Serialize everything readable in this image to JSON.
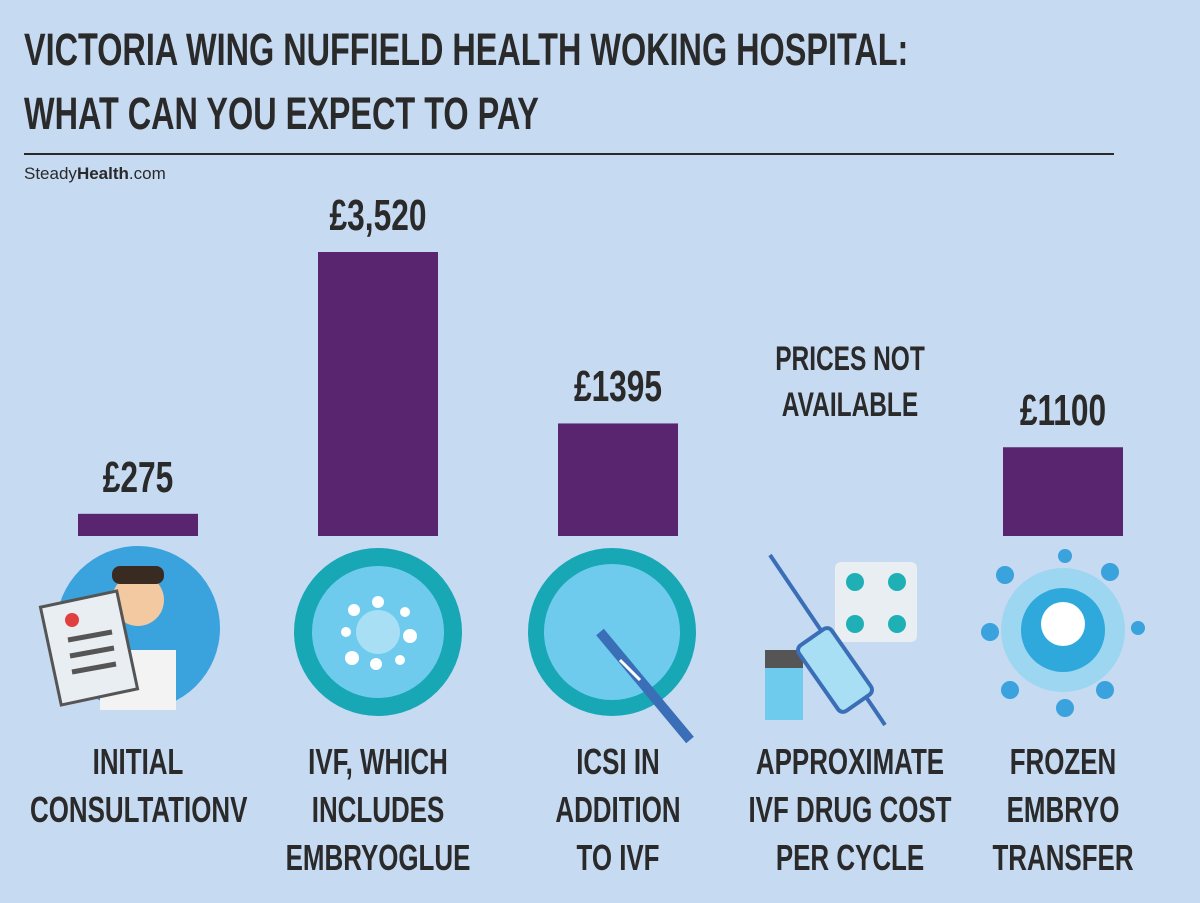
{
  "chart_data": {
    "type": "bar",
    "title": "VICTORIA WING NUFFIELD HEALTH WOKING HOSPITAL:\nWHAT CAN YOU EXPECT TO PAY",
    "source": [
      "Steady",
      "Health",
      ".com"
    ],
    "categories": [
      "INITIAL\nCONSULTATIONV",
      "IVF, WHICH\nINCLUDES\nEMBRYOGLUE",
      "ICSI IN\nADDITION\nTO IVF",
      "APPROXIMATE\nIVF DRUG COST\nPER CYCLE",
      "FROZEN\nEMBRYO\nTRANSFER"
    ],
    "values": [
      275,
      3520,
      1395,
      null,
      1100
    ],
    "value_labels": [
      "£275",
      "£3,520",
      "£1395",
      null,
      "£1100"
    ],
    "annotation": "PRICES NOT\nAVAILABLE",
    "color": "#5a256f"
  }
}
